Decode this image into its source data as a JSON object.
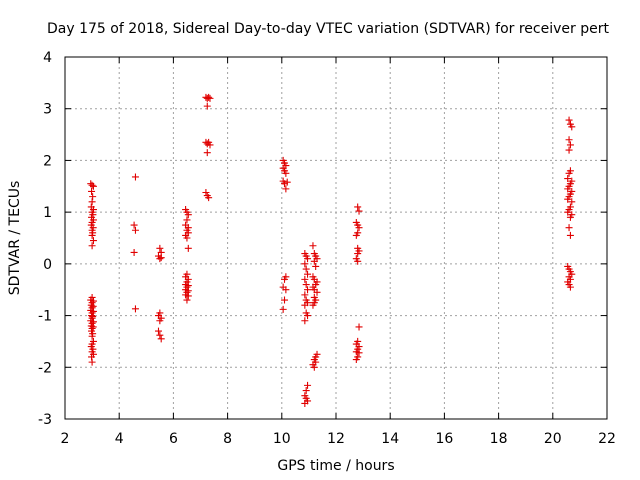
{
  "chart_data": {
    "type": "scatter",
    "title": "Day 175 of 2018, Sidereal Day-to-day VTEC variation (SDTVAR) for receiver pert",
    "xlabel": "GPS time / hours",
    "ylabel": "SDTVAR / TECUs",
    "xlim": [
      2,
      22
    ],
    "ylim": [
      -3,
      4
    ],
    "xticks": [
      "2",
      "4",
      "6",
      "8",
      "10",
      "12",
      "14",
      "16",
      "18",
      "20",
      "22"
    ],
    "yticks": [
      "-3",
      "-2",
      "-1",
      "0",
      "1",
      "2",
      "3",
      "4"
    ],
    "grid": true,
    "marker": "plus",
    "marker_color": "#e00000",
    "series": [
      {
        "name": "SDTVAR",
        "points": [
          [
            2.95,
            1.55
          ],
          [
            3.0,
            1.52
          ],
          [
            3.05,
            1.5
          ],
          [
            2.98,
            1.4
          ],
          [
            3.02,
            1.3
          ],
          [
            3.0,
            1.2
          ],
          [
            2.97,
            1.1
          ],
          [
            3.05,
            1.05
          ],
          [
            3.0,
            1.0
          ],
          [
            3.03,
            0.95
          ],
          [
            2.98,
            0.9
          ],
          [
            3.05,
            0.85
          ],
          [
            3.0,
            0.8
          ],
          [
            2.97,
            0.75
          ],
          [
            3.04,
            0.7
          ],
          [
            3.0,
            0.65
          ],
          [
            3.02,
            0.6
          ],
          [
            3.0,
            0.55
          ],
          [
            3.05,
            0.45
          ],
          [
            3.0,
            0.35
          ],
          [
            3.0,
            -0.65
          ],
          [
            2.95,
            -0.7
          ],
          [
            3.05,
            -0.72
          ],
          [
            3.0,
            -0.75
          ],
          [
            2.97,
            -0.8
          ],
          [
            3.04,
            -0.82
          ],
          [
            3.0,
            -0.85
          ],
          [
            2.95,
            -0.9
          ],
          [
            3.05,
            -0.92
          ],
          [
            3.0,
            -0.95
          ],
          [
            2.98,
            -1.0
          ],
          [
            3.02,
            -1.02
          ],
          [
            3.0,
            -1.05
          ],
          [
            2.95,
            -1.1
          ],
          [
            3.05,
            -1.12
          ],
          [
            3.0,
            -1.15
          ],
          [
            2.97,
            -1.2
          ],
          [
            3.04,
            -1.22
          ],
          [
            3.0,
            -1.25
          ],
          [
            2.98,
            -1.3
          ],
          [
            3.02,
            -1.35
          ],
          [
            3.0,
            -1.4
          ],
          [
            3.05,
            -1.5
          ],
          [
            3.0,
            -1.55
          ],
          [
            2.97,
            -1.6
          ],
          [
            3.03,
            -1.65
          ],
          [
            3.0,
            -1.7
          ],
          [
            3.05,
            -1.75
          ],
          [
            2.98,
            -1.8
          ],
          [
            3.0,
            -1.9
          ],
          [
            4.6,
            1.68
          ],
          [
            4.55,
            0.75
          ],
          [
            4.6,
            0.65
          ],
          [
            4.55,
            0.22
          ],
          [
            4.6,
            -0.87
          ],
          [
            5.5,
            0.3
          ],
          [
            5.55,
            0.22
          ],
          [
            5.45,
            0.15
          ],
          [
            5.5,
            0.1
          ],
          [
            5.55,
            0.12
          ],
          [
            5.5,
            -0.95
          ],
          [
            5.45,
            -1.0
          ],
          [
            5.55,
            -1.05
          ],
          [
            5.5,
            -1.1
          ],
          [
            5.45,
            -1.3
          ],
          [
            5.5,
            -1.38
          ],
          [
            5.55,
            -1.45
          ],
          [
            6.45,
            1.05
          ],
          [
            6.5,
            1.0
          ],
          [
            6.55,
            0.95
          ],
          [
            6.5,
            0.85
          ],
          [
            6.45,
            0.75
          ],
          [
            6.55,
            0.7
          ],
          [
            6.5,
            0.65
          ],
          [
            6.55,
            0.6
          ],
          [
            6.45,
            0.55
          ],
          [
            6.5,
            0.5
          ],
          [
            6.55,
            0.3
          ],
          [
            6.5,
            -0.2
          ],
          [
            6.45,
            -0.25
          ],
          [
            6.55,
            -0.3
          ],
          [
            6.5,
            -0.35
          ],
          [
            6.45,
            -0.4
          ],
          [
            6.55,
            -0.42
          ],
          [
            6.5,
            -0.45
          ],
          [
            6.45,
            -0.5
          ],
          [
            6.55,
            -0.52
          ],
          [
            6.5,
            -0.55
          ],
          [
            6.45,
            -0.6
          ],
          [
            6.55,
            -0.62
          ],
          [
            6.5,
            -0.7
          ],
          [
            7.2,
            3.22
          ],
          [
            7.25,
            3.2
          ],
          [
            7.3,
            3.22
          ],
          [
            7.35,
            3.2
          ],
          [
            7.25,
            3.05
          ],
          [
            7.2,
            2.35
          ],
          [
            7.25,
            2.32
          ],
          [
            7.3,
            2.35
          ],
          [
            7.35,
            2.3
          ],
          [
            7.25,
            2.15
          ],
          [
            7.2,
            1.38
          ],
          [
            7.25,
            1.32
          ],
          [
            7.3,
            1.28
          ],
          [
            10.05,
            2.0
          ],
          [
            10.1,
            1.95
          ],
          [
            10.15,
            1.9
          ],
          [
            10.05,
            1.85
          ],
          [
            10.1,
            1.8
          ],
          [
            10.15,
            1.75
          ],
          [
            10.05,
            1.6
          ],
          [
            10.1,
            1.55
          ],
          [
            10.2,
            1.58
          ],
          [
            10.15,
            1.45
          ],
          [
            10.1,
            -0.3
          ],
          [
            10.15,
            -0.25
          ],
          [
            10.05,
            -0.45
          ],
          [
            10.15,
            -0.5
          ],
          [
            10.1,
            -0.7
          ],
          [
            10.05,
            -0.88
          ],
          [
            10.85,
            0.2
          ],
          [
            10.9,
            0.15
          ],
          [
            10.95,
            0.1
          ],
          [
            10.85,
            0.0
          ],
          [
            10.9,
            -0.1
          ],
          [
            10.95,
            -0.2
          ],
          [
            10.85,
            -0.3
          ],
          [
            10.9,
            -0.4
          ],
          [
            10.95,
            -0.5
          ],
          [
            10.85,
            -0.6
          ],
          [
            10.9,
            -0.7
          ],
          [
            10.95,
            -0.75
          ],
          [
            10.85,
            -0.8
          ],
          [
            10.9,
            -0.95
          ],
          [
            10.95,
            -1.0
          ],
          [
            10.85,
            -1.1
          ],
          [
            10.95,
            -2.35
          ],
          [
            10.9,
            -2.45
          ],
          [
            10.85,
            -2.55
          ],
          [
            10.9,
            -2.6
          ],
          [
            10.95,
            -2.65
          ],
          [
            10.85,
            -2.7
          ],
          [
            11.15,
            0.35
          ],
          [
            11.2,
            0.2
          ],
          [
            11.25,
            0.15
          ],
          [
            11.3,
            0.1
          ],
          [
            11.2,
            0.05
          ],
          [
            11.25,
            -0.05
          ],
          [
            11.15,
            -0.25
          ],
          [
            11.2,
            -0.3
          ],
          [
            11.3,
            -0.35
          ],
          [
            11.25,
            -0.4
          ],
          [
            11.15,
            -0.45
          ],
          [
            11.2,
            -0.5
          ],
          [
            11.3,
            -0.55
          ],
          [
            11.2,
            -0.65
          ],
          [
            11.25,
            -0.7
          ],
          [
            11.2,
            -0.75
          ],
          [
            11.15,
            -0.8
          ],
          [
            11.3,
            -1.75
          ],
          [
            11.25,
            -1.8
          ],
          [
            11.2,
            -1.85
          ],
          [
            11.25,
            -1.9
          ],
          [
            11.15,
            -1.95
          ],
          [
            11.2,
            -2.0
          ],
          [
            12.8,
            1.1
          ],
          [
            12.85,
            1.02
          ],
          [
            12.75,
            0.8
          ],
          [
            12.8,
            0.75
          ],
          [
            12.85,
            0.7
          ],
          [
            12.8,
            0.6
          ],
          [
            12.75,
            0.55
          ],
          [
            12.8,
            0.3
          ],
          [
            12.85,
            0.25
          ],
          [
            12.8,
            0.2
          ],
          [
            12.75,
            0.1
          ],
          [
            12.8,
            0.05
          ],
          [
            12.85,
            -1.22
          ],
          [
            12.8,
            -1.5
          ],
          [
            12.75,
            -1.55
          ],
          [
            12.85,
            -1.6
          ],
          [
            12.8,
            -1.65
          ],
          [
            12.75,
            -1.7
          ],
          [
            12.85,
            -1.72
          ],
          [
            12.8,
            -1.8
          ],
          [
            12.75,
            -1.85
          ],
          [
            20.6,
            2.78
          ],
          [
            20.65,
            2.7
          ],
          [
            20.7,
            2.65
          ],
          [
            20.6,
            2.4
          ],
          [
            20.65,
            2.3
          ],
          [
            20.6,
            2.2
          ],
          [
            20.65,
            1.8
          ],
          [
            20.6,
            1.75
          ],
          [
            20.55,
            1.65
          ],
          [
            20.7,
            1.6
          ],
          [
            20.65,
            1.55
          ],
          [
            20.6,
            1.5
          ],
          [
            20.55,
            1.45
          ],
          [
            20.7,
            1.4
          ],
          [
            20.65,
            1.35
          ],
          [
            20.6,
            1.3
          ],
          [
            20.55,
            1.25
          ],
          [
            20.7,
            1.2
          ],
          [
            20.65,
            1.1
          ],
          [
            20.6,
            1.05
          ],
          [
            20.55,
            1.0
          ],
          [
            20.7,
            0.95
          ],
          [
            20.65,
            0.9
          ],
          [
            20.6,
            0.7
          ],
          [
            20.65,
            0.55
          ],
          [
            20.55,
            -0.05
          ],
          [
            20.6,
            -0.1
          ],
          [
            20.65,
            -0.15
          ],
          [
            20.7,
            -0.2
          ],
          [
            20.6,
            -0.25
          ],
          [
            20.65,
            -0.3
          ],
          [
            20.55,
            -0.35
          ],
          [
            20.6,
            -0.4
          ],
          [
            20.65,
            -0.45
          ]
        ]
      }
    ]
  }
}
